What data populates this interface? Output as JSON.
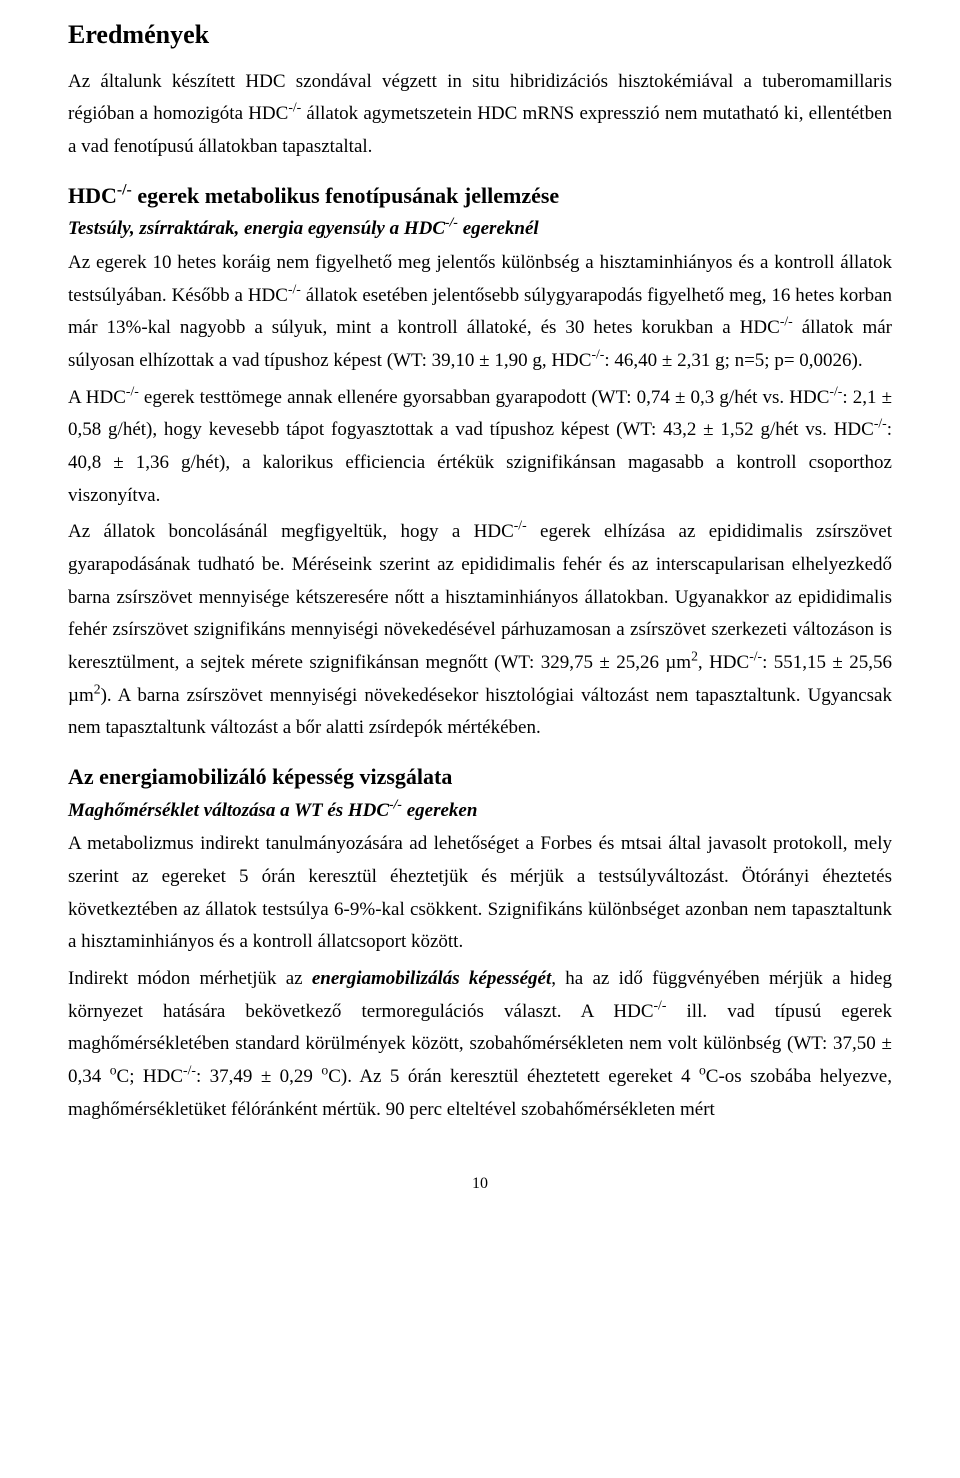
{
  "page": {
    "background_color": "#ffffff",
    "text_color": "#000000",
    "font_family": "Times New Roman",
    "body_fontsize_pt": 14,
    "h1_fontsize_pt": 20,
    "h2_fontsize_pt": 17,
    "h3_fontsize_pt": 14,
    "line_height": 1.72,
    "page_number": "10"
  },
  "blocks": [
    {
      "kind": "h1",
      "name": "heading-results",
      "text": "Eredmények"
    },
    {
      "kind": "para",
      "name": "para-intro",
      "html": "Az általunk készített HDC szondával végzett in situ hibridizációs hisztokémiával a tuberomamillaris régióban a homozigóta HDC<sup>-/-</sup> állatok agymetszetein HDC mRNS expresszió nem mutatható ki, ellentétben a vad fenotípusú állatokban tapasztaltal."
    },
    {
      "kind": "h2",
      "name": "heading-metabolic",
      "html": "HDC<sup>-/-</sup> egerek metabolikus fenotípusának jellemzése"
    },
    {
      "kind": "h3",
      "name": "subheading-weight-fat",
      "html": "Testsúly, zsírraktárak, energia egyensúly a HDC<sup>-/-</sup> egereknél"
    },
    {
      "kind": "para",
      "name": "para-weight-fat",
      "html": "Az egerek 10 hetes koráig nem figyelhető meg jelentős különbség a hisztaminhiányos és a kontroll állatok testsúlyában. Később a HDC<sup>-/-</sup> állatok esetében jelentősebb súlygyarapodás figyelhető meg, 16 hetes korban már 13%-kal nagyobb a súlyuk, mint a kontroll állatoké, és 30 hetes korukban a HDC<sup>-/-</sup> állatok már súlyosan elhízottak a vad típushoz képest (WT: 39,10 ± 1,90 g, HDC<sup>-/-</sup>: 46,40 ± 2,31 g; n=5; p= 0,0026)."
    },
    {
      "kind": "para",
      "name": "para-body-mass",
      "html": "A HDC<sup>-/-</sup> egerek testtömege annak ellenére gyorsabban gyarapodott (WT: 0,74 ± 0,3 g/hét vs. HDC<sup>-/-</sup>: 2,1 ± 0,58 g/hét), hogy kevesebb tápot fogyasztottak a vad típushoz képest (WT: 43,2 ± 1,52 g/hét vs. HDC<sup>-/-</sup>: 40,8 ± 1,36 g/hét), a kalorikus efficiencia értékük szignifikánsan magasabb a kontroll csoporthoz viszonyítva."
    },
    {
      "kind": "para",
      "name": "para-dissection",
      "html": "Az állatok boncolásánál megfigyeltük, hogy a HDC<sup>-/-</sup> egerek elhízása az epididimalis zsírszövet gyarapodásának tudható be. Méréseink szerint az epididimalis fehér és az interscapularisan elhelyezkedő barna zsírszövet mennyisége kétszeresére nőtt a hisztaminhiányos állatokban. Ugyanakkor az epididimalis fehér zsírszövet szignifikáns mennyiségi növekedésével párhuzamosan a zsírszövet szerkezeti változáson is keresztülment, a sejtek mérete szignifikánsan megnőtt (WT: 329,75 ± 25,26 µm<sup>2</sup>, HDC<sup>-/-</sup>: 551,15 ± 25,56 µm<sup>2</sup>). A barna zsírszövet mennyiségi növekedésekor hisztológiai változást nem tapasztaltunk. Ugyancsak nem tapasztaltunk változást a bőr alatti zsírdepók mértékében."
    },
    {
      "kind": "h2",
      "name": "heading-energy-mobilization",
      "text": "Az energiamobilizáló képesség vizsgálata"
    },
    {
      "kind": "h3",
      "name": "subheading-core-temp",
      "html": "Maghőmérséklet változása a WT és HDC<sup>-/-</sup> egereken"
    },
    {
      "kind": "para",
      "name": "para-metabolism-study",
      "html": "A metabolizmus indirekt tanulmányozására ad lehetőséget a Forbes és mtsai által javasolt protokoll, mely szerint az egereket 5 órán keresztül éheztetjük és mérjük a testsúlyváltozást. Ötórányi éheztetés következtében az állatok testsúlya 6-9%-kal csökkent. Szignifikáns különbséget azonban nem tapasztaltunk a hisztaminhiányos és a kontroll állatcsoport között."
    },
    {
      "kind": "para",
      "name": "para-indirect-energy",
      "html": "Indirekt módon mérhetjük az <span class=\"bi\">energiamobilizálás képességét</span>, ha az idő függvényében mérjük a hideg környezet hatására bekövetkező termoregulációs választ. A HDC<sup>-/-</sup> ill. vad típusú egerek maghőmérsékletében standard körülmények között, szobahőmérsékleten nem volt különbség (WT: 37,50 ± 0,34 <sup>o</sup>C; HDC<sup>-/-</sup>: 37,49 ± 0,29 <sup>o</sup>C). Az 5 órán keresztül éheztetett egereket 4 <sup>o</sup>C-os szobába helyezve, maghőmérsékletüket félóránként mértük. 90 perc elteltével szobahőmérsékleten mért"
    }
  ]
}
